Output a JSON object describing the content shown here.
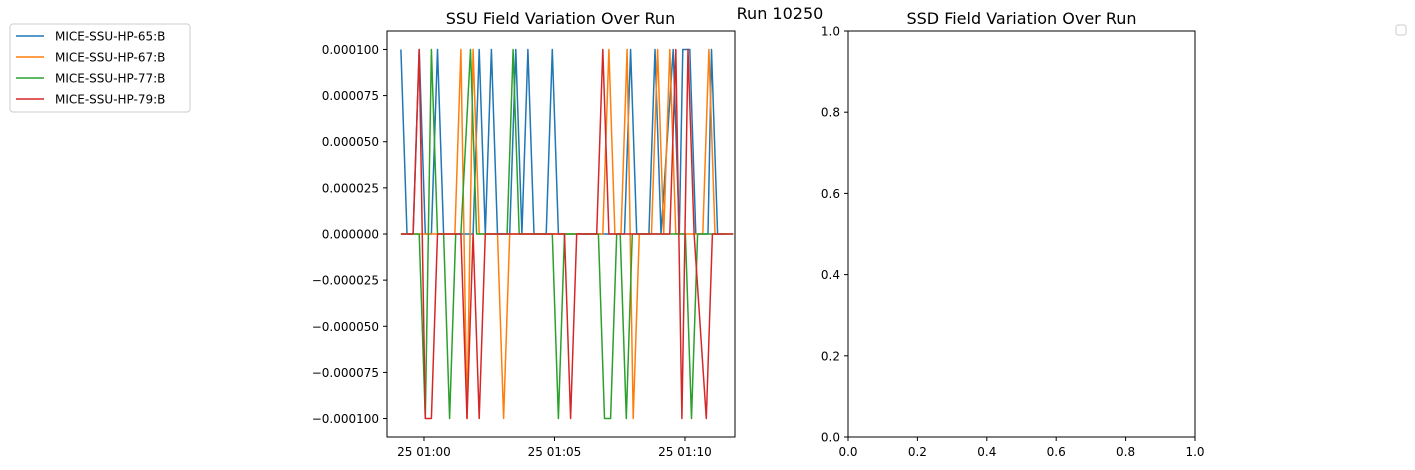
{
  "figure": {
    "suptitle": "Run 10250"
  },
  "chart_data": [
    {
      "type": "line",
      "title": "SSU Field Variation Over Run",
      "xlabel": "",
      "ylabel": "",
      "x_ticks": [
        "25 01:00",
        "25 01:05",
        "25 01:10"
      ],
      "x_tick_values": [
        "2000-01-25T01:00:00",
        "2000-01-25T01:05:00",
        "2000-01-25T01:10:00"
      ],
      "xlim": [
        "2000-01-25T00:58:35",
        "2000-01-25T01:11:55"
      ],
      "y_ticks": [
        "0.000100",
        "0.000075",
        "0.000050",
        "0.000025",
        "0.000000",
        "−0.000025",
        "−0.000050",
        "−0.000075",
        "−0.000100"
      ],
      "y_tick_values": [
        0.0001,
        7.5e-05,
        5e-05,
        2.5e-05,
        0,
        -2.5e-05,
        -5e-05,
        -7.5e-05,
        -0.0001
      ],
      "ylim": [
        -0.00011,
        0.00011
      ],
      "grid": false,
      "legend_position": "outside upper-left",
      "series": [
        {
          "name": "MICE-SSU-HP-65:B",
          "color": "#1f77b4",
          "points": [
            [
              "2000-01-25T00:59:07",
              0.0001
            ],
            [
              "2000-01-25T00:59:21",
              0
            ],
            [
              "2000-01-25T00:59:35",
              0
            ],
            [
              "2000-01-25T00:59:49",
              0.0001
            ],
            [
              "2000-01-25T01:00:03",
              0
            ],
            [
              "2000-01-25T01:00:17",
              0
            ],
            [
              "2000-01-25T01:00:31",
              0.0001
            ],
            [
              "2000-01-25T01:00:45",
              0
            ],
            [
              "2000-01-25T01:01:53",
              0
            ],
            [
              "2000-01-25T01:02:07",
              0.0001
            ],
            [
              "2000-01-25T01:02:21",
              0
            ],
            [
              "2000-01-25T01:02:35",
              0.0001
            ],
            [
              "2000-01-25T01:02:49",
              0
            ],
            [
              "2000-01-25T01:03:17",
              0
            ],
            [
              "2000-01-25T01:03:31",
              0.0001
            ],
            [
              "2000-01-25T01:03:45",
              0
            ],
            [
              "2000-01-25T01:03:59",
              0.0001
            ],
            [
              "2000-01-25T01:04:13",
              0
            ],
            [
              "2000-01-25T01:04:41",
              0
            ],
            [
              "2000-01-25T01:04:55",
              0.0001
            ],
            [
              "2000-01-25T01:05:09",
              0
            ],
            [
              "2000-01-25T01:07:41",
              0
            ],
            [
              "2000-01-25T01:07:55",
              0.0001
            ],
            [
              "2000-01-25T01:08:09",
              0
            ],
            [
              "2000-01-25T01:08:37",
              0
            ],
            [
              "2000-01-25T01:08:51",
              0.0001
            ],
            [
              "2000-01-25T01:09:05",
              0
            ],
            [
              "2000-01-25T01:09:33",
              0.0001
            ],
            [
              "2000-01-25T01:09:47",
              0
            ],
            [
              "2000-01-25T01:09:55",
              0.0001
            ],
            [
              "2000-01-25T01:10:11",
              0.0001
            ],
            [
              "2000-01-25T01:10:25",
              0
            ],
            [
              "2000-01-25T01:10:53",
              0
            ],
            [
              "2000-01-25T01:11:01",
              0.0001
            ],
            [
              "2000-01-25T01:11:15",
              0
            ],
            [
              "2000-01-25T01:11:23",
              0
            ]
          ]
        },
        {
          "name": "MICE-SSU-HP-67:B",
          "color": "#ff7f0e",
          "points": [
            [
              "2000-01-25T00:59:07",
              0
            ],
            [
              "2000-01-25T01:01:11",
              0
            ],
            [
              "2000-01-25T01:01:25",
              0.0001
            ],
            [
              "2000-01-25T01:01:39",
              -0.0001
            ],
            [
              "2000-01-25T01:01:53",
              0.0001
            ],
            [
              "2000-01-25T01:02:07",
              0
            ],
            [
              "2000-01-25T01:02:49",
              0
            ],
            [
              "2000-01-25T01:03:03",
              -0.0001
            ],
            [
              "2000-01-25T01:03:17",
              0
            ],
            [
              "2000-01-25T01:06:51",
              0
            ],
            [
              "2000-01-25T01:07:05",
              0.0001
            ],
            [
              "2000-01-25T01:07:19",
              0
            ],
            [
              "2000-01-25T01:07:33",
              0
            ],
            [
              "2000-01-25T01:07:47",
              0.0001
            ],
            [
              "2000-01-25T01:08:01",
              -0.0001
            ],
            [
              "2000-01-25T01:08:15",
              0
            ],
            [
              "2000-01-25T01:08:43",
              0
            ],
            [
              "2000-01-25T01:08:57",
              0.0001
            ],
            [
              "2000-01-25T01:09:11",
              0
            ],
            [
              "2000-01-25T01:09:25",
              0.0001
            ],
            [
              "2000-01-25T01:09:39",
              0
            ],
            [
              "2000-01-25T01:10:41",
              0
            ],
            [
              "2000-01-25T01:10:55",
              0.0001
            ],
            [
              "2000-01-25T01:11:09",
              0
            ],
            [
              "2000-01-25T01:11:37",
              0
            ]
          ]
        },
        {
          "name": "MICE-SSU-HP-77:B",
          "color": "#2ca02c",
          "points": [
            [
              "2000-01-25T00:59:07",
              0
            ],
            [
              "2000-01-25T00:59:49",
              0
            ],
            [
              "2000-01-25T01:00:03",
              -0.0001
            ],
            [
              "2000-01-25T01:00:17",
              0.0001
            ],
            [
              "2000-01-25T01:00:31",
              0
            ],
            [
              "2000-01-25T01:00:45",
              0
            ],
            [
              "2000-01-25T01:00:59",
              -0.0001
            ],
            [
              "2000-01-25T01:01:13",
              0
            ],
            [
              "2000-01-25T01:01:25",
              0
            ],
            [
              "2000-01-25T01:01:47",
              0.0001
            ],
            [
              "2000-01-25T01:02:01",
              0
            ],
            [
              "2000-01-25T01:03:11",
              0
            ],
            [
              "2000-01-25T01:03:25",
              0.0001
            ],
            [
              "2000-01-25T01:03:39",
              0
            ],
            [
              "2000-01-25T01:04:55",
              0
            ],
            [
              "2000-01-25T01:05:09",
              -0.0001
            ],
            [
              "2000-01-25T01:05:23",
              0
            ],
            [
              "2000-01-25T01:06:41",
              0
            ],
            [
              "2000-01-25T01:06:55",
              -0.0001
            ],
            [
              "2000-01-25T01:07:09",
              -0.0001
            ],
            [
              "2000-01-25T01:07:23",
              0
            ],
            [
              "2000-01-25T01:07:31",
              0
            ],
            [
              "2000-01-25T01:07:45",
              -0.0001
            ],
            [
              "2000-01-25T01:07:59",
              0
            ],
            [
              "2000-01-25T01:09:47",
              0
            ],
            [
              "2000-01-25T01:10:01",
              0
            ],
            [
              "2000-01-25T01:10:15",
              -0.0001
            ],
            [
              "2000-01-25T01:10:29",
              0
            ],
            [
              "2000-01-25T01:11:51",
              0
            ]
          ]
        },
        {
          "name": "MICE-SSU-HP-79:B",
          "color": "#d62728",
          "points": [
            [
              "2000-01-25T00:59:07",
              0
            ],
            [
              "2000-01-25T00:59:35",
              0
            ],
            [
              "2000-01-25T00:59:49",
              0.0001
            ],
            [
              "2000-01-25T01:00:03",
              -0.0001
            ],
            [
              "2000-01-25T01:00:17",
              -0.0001
            ],
            [
              "2000-01-25T01:00:31",
              0
            ],
            [
              "2000-01-25T01:01:25",
              0
            ],
            [
              "2000-01-25T01:01:39",
              -0.0001
            ],
            [
              "2000-01-25T01:01:53",
              0
            ],
            [
              "2000-01-25T01:02:07",
              -0.0001
            ],
            [
              "2000-01-25T01:02:21",
              0
            ],
            [
              "2000-01-25T01:05:23",
              0
            ],
            [
              "2000-01-25T01:05:37",
              -0.0001
            ],
            [
              "2000-01-25T01:05:51",
              0
            ],
            [
              "2000-01-25T01:06:37",
              0
            ],
            [
              "2000-01-25T01:06:51",
              0.0001
            ],
            [
              "2000-01-25T01:07:05",
              0
            ],
            [
              "2000-01-25T01:09:25",
              0
            ],
            [
              "2000-01-25T01:09:39",
              0.0001
            ],
            [
              "2000-01-25T01:09:53",
              -0.0001
            ],
            [
              "2000-01-25T01:10:07",
              0.0001
            ],
            [
              "2000-01-25T01:10:21",
              0
            ],
            [
              "2000-01-25T01:10:49",
              -0.0001
            ],
            [
              "2000-01-25T01:11:03",
              0
            ],
            [
              "2000-01-25T01:11:51",
              0
            ]
          ]
        }
      ]
    },
    {
      "type": "line",
      "title": "SSD Field Variation Over Run",
      "xlabel": "",
      "ylabel": "",
      "xlim": [
        0,
        1
      ],
      "ylim": [
        0,
        1
      ],
      "x_ticks": [
        "0.0",
        "0.2",
        "0.4",
        "0.6",
        "0.8",
        "1.0"
      ],
      "x_tick_values": [
        0,
        0.2,
        0.4,
        0.6,
        0.8,
        1
      ],
      "y_ticks": [
        "0.0",
        "0.2",
        "0.4",
        "0.6",
        "0.8",
        "1.0"
      ],
      "y_tick_values": [
        0,
        0.2,
        0.4,
        0.6,
        0.8,
        1
      ],
      "grid": false,
      "legend_position": "outside upper-right (empty)",
      "series": []
    }
  ]
}
